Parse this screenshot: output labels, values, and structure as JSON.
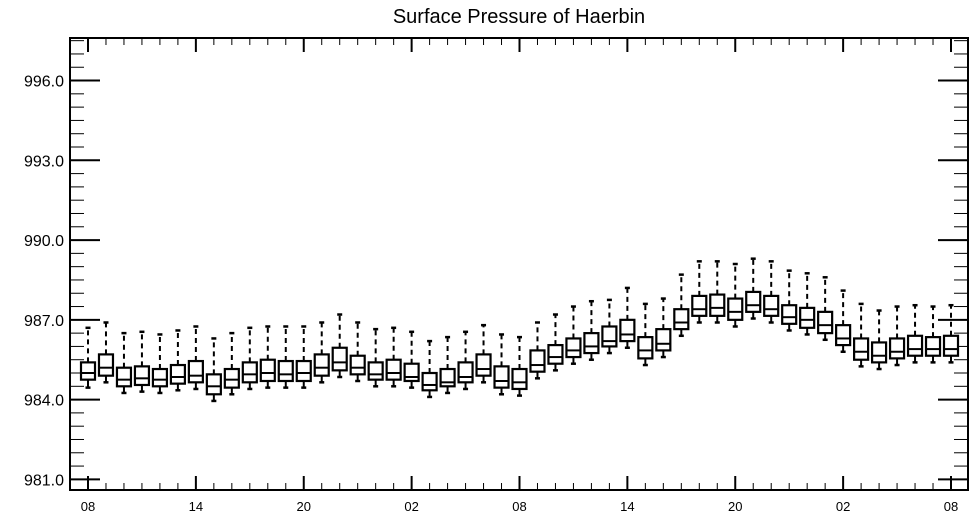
{
  "chart_data": {
    "type": "boxplot",
    "title": "Surface Pressure of Haerbin",
    "xlabel": "",
    "ylabel": "",
    "ylim": [
      980.6,
      997.6
    ],
    "yticks": [
      "981.0",
      "984.0",
      "987.0",
      "990.0",
      "993.0",
      "996.0"
    ],
    "xticks": [
      "08",
      "14",
      "20",
      "02",
      "08",
      "14",
      "20",
      "02",
      "08"
    ],
    "grid": false,
    "boxes": [
      {
        "q1": 984.75,
        "median": 985.0,
        "q3": 985.4,
        "min": 984.45,
        "max": 986.7
      },
      {
        "q1": 984.9,
        "median": 985.2,
        "q3": 985.7,
        "min": 984.65,
        "max": 986.9
      },
      {
        "q1": 984.5,
        "median": 984.75,
        "q3": 985.2,
        "min": 984.25,
        "max": 986.5
      },
      {
        "q1": 984.55,
        "median": 984.8,
        "q3": 985.25,
        "min": 984.3,
        "max": 986.55
      },
      {
        "q1": 984.5,
        "median": 984.75,
        "q3": 985.15,
        "min": 984.25,
        "max": 986.45
      },
      {
        "q1": 984.6,
        "median": 984.85,
        "q3": 985.3,
        "min": 984.35,
        "max": 986.6
      },
      {
        "q1": 984.65,
        "median": 984.9,
        "q3": 985.45,
        "min": 984.4,
        "max": 986.75
      },
      {
        "q1": 984.2,
        "median": 984.5,
        "q3": 984.95,
        "min": 983.95,
        "max": 986.3
      },
      {
        "q1": 984.45,
        "median": 984.75,
        "q3": 985.15,
        "min": 984.2,
        "max": 986.5
      },
      {
        "q1": 984.65,
        "median": 984.95,
        "q3": 985.4,
        "min": 984.4,
        "max": 986.7
      },
      {
        "q1": 984.7,
        "median": 985.0,
        "q3": 985.5,
        "min": 984.45,
        "max": 986.75
      },
      {
        "q1": 984.7,
        "median": 984.95,
        "q3": 985.45,
        "min": 984.45,
        "max": 986.75
      },
      {
        "q1": 984.7,
        "median": 985.0,
        "q3": 985.45,
        "min": 984.45,
        "max": 986.75
      },
      {
        "q1": 984.9,
        "median": 985.2,
        "q3": 985.7,
        "min": 984.65,
        "max": 986.9
      },
      {
        "q1": 985.1,
        "median": 985.4,
        "q3": 985.95,
        "min": 984.85,
        "max": 987.2
      },
      {
        "q1": 984.95,
        "median": 985.2,
        "q3": 985.65,
        "min": 984.7,
        "max": 986.9
      },
      {
        "q1": 984.75,
        "median": 984.95,
        "q3": 985.4,
        "min": 984.5,
        "max": 986.65
      },
      {
        "q1": 984.75,
        "median": 985.0,
        "q3": 985.5,
        "min": 984.5,
        "max": 986.7
      },
      {
        "q1": 984.7,
        "median": 984.85,
        "q3": 985.35,
        "min": 984.45,
        "max": 986.55
      },
      {
        "q1": 984.35,
        "median": 984.55,
        "q3": 985.0,
        "min": 984.1,
        "max": 986.2
      },
      {
        "q1": 984.5,
        "median": 984.65,
        "q3": 985.15,
        "min": 984.25,
        "max": 986.35
      },
      {
        "q1": 984.65,
        "median": 984.85,
        "q3": 985.4,
        "min": 984.4,
        "max": 986.55
      },
      {
        "q1": 984.9,
        "median": 985.15,
        "q3": 985.7,
        "min": 984.65,
        "max": 986.8
      },
      {
        "q1": 984.45,
        "median": 984.7,
        "q3": 985.25,
        "min": 984.2,
        "max": 986.45
      },
      {
        "q1": 984.4,
        "median": 984.65,
        "q3": 985.15,
        "min": 984.15,
        "max": 986.35
      },
      {
        "q1": 985.05,
        "median": 985.3,
        "q3": 985.85,
        "min": 984.8,
        "max": 986.9
      },
      {
        "q1": 985.35,
        "median": 985.6,
        "q3": 986.05,
        "min": 985.1,
        "max": 987.2
      },
      {
        "q1": 985.6,
        "median": 985.85,
        "q3": 986.3,
        "min": 985.35,
        "max": 987.5
      },
      {
        "q1": 985.75,
        "median": 986.0,
        "q3": 986.5,
        "min": 985.5,
        "max": 987.7
      },
      {
        "q1": 986.0,
        "median": 986.2,
        "q3": 986.75,
        "min": 985.75,
        "max": 987.75
      },
      {
        "q1": 986.2,
        "median": 986.45,
        "q3": 987.0,
        "min": 985.95,
        "max": 988.2
      },
      {
        "q1": 985.55,
        "median": 985.85,
        "q3": 986.35,
        "min": 985.3,
        "max": 987.6
      },
      {
        "q1": 985.85,
        "median": 986.1,
        "q3": 986.65,
        "min": 985.6,
        "max": 987.8
      },
      {
        "q1": 986.65,
        "median": 986.9,
        "q3": 987.4,
        "min": 986.4,
        "max": 988.7
      },
      {
        "q1": 987.15,
        "median": 987.4,
        "q3": 987.9,
        "min": 986.9,
        "max": 989.2
      },
      {
        "q1": 987.15,
        "median": 987.45,
        "q3": 987.95,
        "min": 986.9,
        "max": 989.2
      },
      {
        "q1": 987.0,
        "median": 987.3,
        "q3": 987.8,
        "min": 986.75,
        "max": 989.1
      },
      {
        "q1": 987.3,
        "median": 987.55,
        "q3": 988.05,
        "min": 987.05,
        "max": 989.3
      },
      {
        "q1": 987.15,
        "median": 987.4,
        "q3": 987.9,
        "min": 986.9,
        "max": 989.2
      },
      {
        "q1": 986.85,
        "median": 987.1,
        "q3": 987.55,
        "min": 986.6,
        "max": 988.85
      },
      {
        "q1": 986.7,
        "median": 987.0,
        "q3": 987.45,
        "min": 986.45,
        "max": 988.75
      },
      {
        "q1": 986.5,
        "median": 986.8,
        "q3": 987.3,
        "min": 986.25,
        "max": 988.6
      },
      {
        "q1": 986.05,
        "median": 986.3,
        "q3": 986.8,
        "min": 985.8,
        "max": 988.1
      },
      {
        "q1": 985.5,
        "median": 985.8,
        "q3": 986.3,
        "min": 985.25,
        "max": 987.6
      },
      {
        "q1": 985.4,
        "median": 985.65,
        "q3": 986.15,
        "min": 985.15,
        "max": 987.35
      },
      {
        "q1": 985.55,
        "median": 985.8,
        "q3": 986.3,
        "min": 985.3,
        "max": 987.5
      },
      {
        "q1": 985.65,
        "median": 985.9,
        "q3": 986.4,
        "min": 985.4,
        "max": 987.55
      },
      {
        "q1": 985.65,
        "median": 985.9,
        "q3": 986.35,
        "min": 985.4,
        "max": 987.5
      },
      {
        "q1": 985.65,
        "median": 985.9,
        "q3": 986.4,
        "min": 985.4,
        "max": 987.55
      }
    ]
  }
}
